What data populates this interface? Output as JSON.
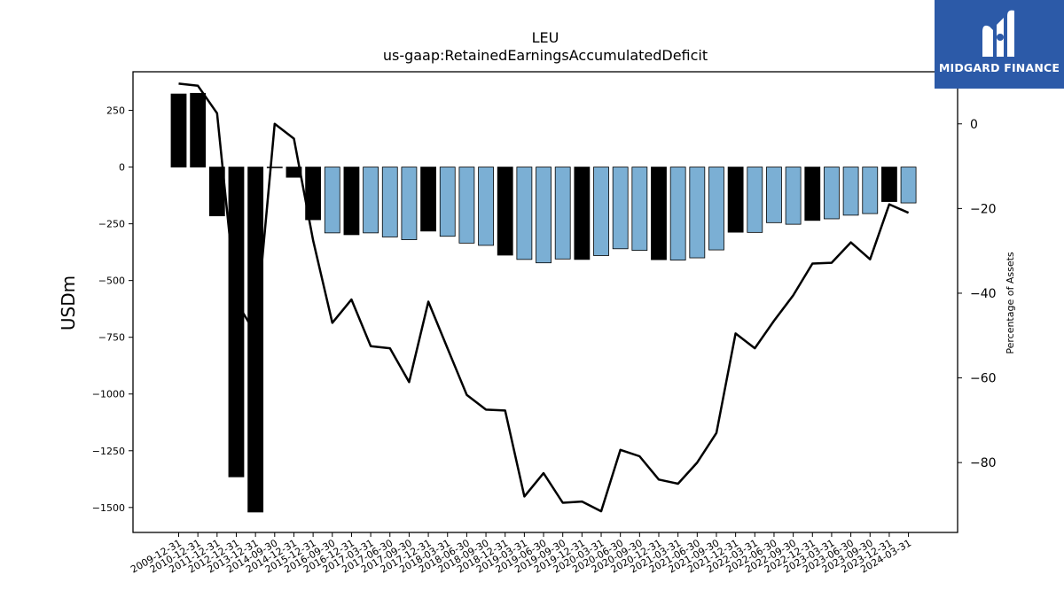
{
  "brand": {
    "name": "MIDGARD FINANCE"
  },
  "chart_data": {
    "type": "bar",
    "title": "LEU",
    "subtitle": "us-gaap:RetainedEarningsAccumulatedDeficit",
    "ylabel": "USDm",
    "y2label": "Percentage of Assets",
    "ylim": [
      -1610,
      420
    ],
    "y2lim": [
      -96.5,
      12.3
    ],
    "yticks": [
      250,
      0,
      -250,
      -500,
      -750,
      -1000,
      -1250,
      -1500
    ],
    "y2ticks": [
      0,
      -20,
      -40,
      -60,
      -80
    ],
    "categories": [
      "2009-12-31",
      "2010-12-31",
      "2011-12-31",
      "2012-12-31",
      "2013-12-31",
      "2014-09-30",
      "2014-12-31",
      "2015-12-31",
      "2016-09-30",
      "2016-12-31",
      "2017-03-31",
      "2017-06-30",
      "2017-09-30",
      "2017-12-31",
      "2018-03-31",
      "2018-06-30",
      "2018-09-30",
      "2018-12-31",
      "2019-03-31",
      "2019-06-30",
      "2019-09-30",
      "2019-12-31",
      "2020-03-31",
      "2020-06-30",
      "2020-09-30",
      "2020-12-31",
      "2021-03-31",
      "2021-06-30",
      "2021-09-30",
      "2021-12-31",
      "2022-03-31",
      "2022-06-30",
      "2022-09-30",
      "2022-12-31",
      "2023-03-31",
      "2023-06-30",
      "2023-09-30",
      "2023-12-31",
      "2024-03-31"
    ],
    "bar_values": [
      322,
      325,
      -215,
      -1365,
      -1520,
      0,
      -45,
      -232,
      -290,
      -298,
      -290,
      -308,
      -320,
      -282,
      -305,
      -335,
      -345,
      -388,
      -407,
      -422,
      -405,
      -407,
      -390,
      -360,
      -367,
      -408,
      -410,
      -400,
      -365,
      -287,
      -288,
      -245,
      -252,
      -235,
      -228,
      -212,
      -205,
      -152,
      -158
    ],
    "bar_colors": [
      "#000000",
      "#000000",
      "#000000",
      "#000000",
      "#000000",
      "#000000",
      "#000000",
      "#000000",
      "#7bafd4",
      "#000000",
      "#7bafd4",
      "#7bafd4",
      "#7bafd4",
      "#000000",
      "#7bafd4",
      "#7bafd4",
      "#7bafd4",
      "#000000",
      "#7bafd4",
      "#7bafd4",
      "#7bafd4",
      "#000000",
      "#7bafd4",
      "#7bafd4",
      "#7bafd4",
      "#000000",
      "#7bafd4",
      "#7bafd4",
      "#7bafd4",
      "#000000",
      "#7bafd4",
      "#7bafd4",
      "#7bafd4",
      "#000000",
      "#7bafd4",
      "#7bafd4",
      "#7bafd4",
      "#000000",
      "#7bafd4"
    ],
    "line_series": {
      "axis": "secondary",
      "values": [
        9.5,
        9.0,
        2.5,
        -42.0,
        -49.5,
        0.0,
        -3.5,
        -27.5,
        -47.0,
        -41.5,
        -52.5,
        -53.0,
        -61.0,
        -42.0,
        -53.0,
        -64.0,
        -67.5,
        -67.7,
        -88.0,
        -82.5,
        -89.5,
        -89.2,
        -91.5,
        -77.0,
        -78.5,
        -84.0,
        -85.0,
        -80.0,
        -73.0,
        -49.5,
        -53.0,
        -46.5,
        -40.5,
        -33.0,
        -32.8,
        -28.0,
        -32.0,
        -19.0,
        -21.0
      ],
      "color": "#000000"
    },
    "grid": false
  }
}
